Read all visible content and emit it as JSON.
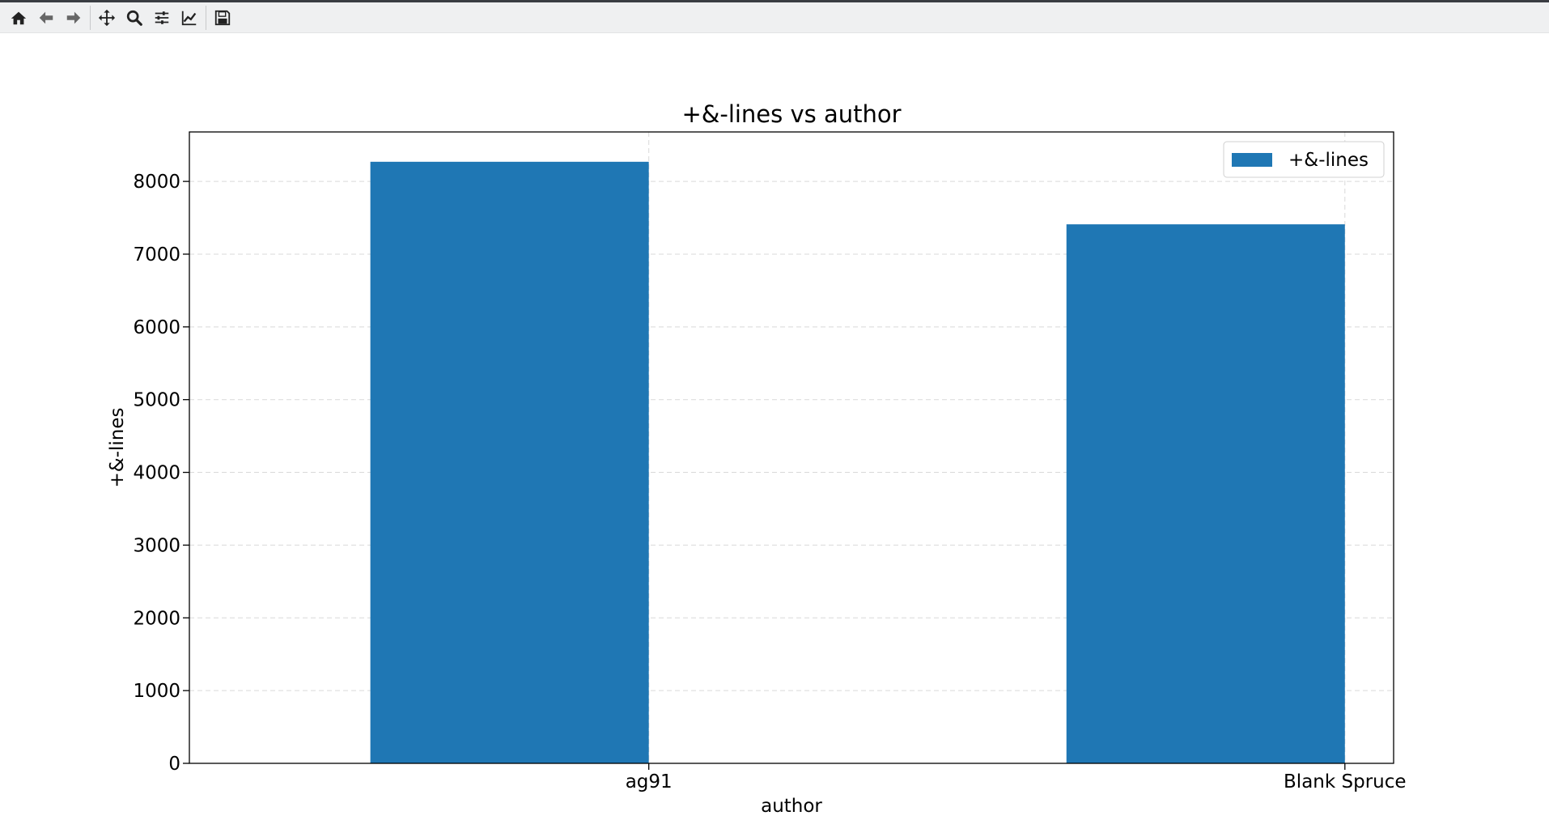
{
  "toolbar": {
    "buttons": [
      {
        "name": "home-icon"
      },
      {
        "name": "back-arrow-icon"
      },
      {
        "name": "forward-arrow-icon"
      },
      {
        "name": "pan-icon"
      },
      {
        "name": "zoom-icon"
      },
      {
        "name": "configure-subplots-icon"
      },
      {
        "name": "edit-axis-icon"
      },
      {
        "name": "save-icon"
      }
    ]
  },
  "colors": {
    "bar": "#1f77b4",
    "toolbar_bg": "#eff0f1"
  },
  "chart_data": {
    "type": "bar",
    "title": "+&-lines vs author",
    "xlabel": "author",
    "ylabel": "+&-lines",
    "categories": [
      "ag91",
      "Blank Spruce"
    ],
    "series": [
      {
        "name": "+&-lines",
        "values": [
          8270,
          7410
        ]
      }
    ],
    "ylim": [
      0,
      8680
    ],
    "yticks": [
      0,
      1000,
      2000,
      3000,
      4000,
      5000,
      6000,
      7000,
      8000
    ],
    "grid": true,
    "legend_position": "upper right"
  }
}
